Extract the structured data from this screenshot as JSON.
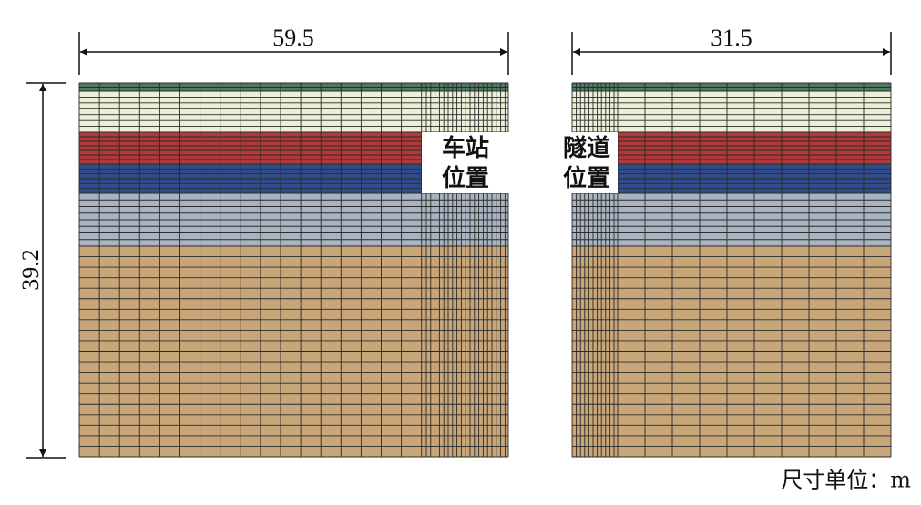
{
  "dimensions": {
    "left_width": "59.5",
    "right_width": "31.5",
    "height": "39.2"
  },
  "labels": {
    "station": [
      "车站",
      "位置"
    ],
    "tunnel": [
      "隧道",
      "位置"
    ]
  },
  "unit_note": "尺寸单位：m"
}
